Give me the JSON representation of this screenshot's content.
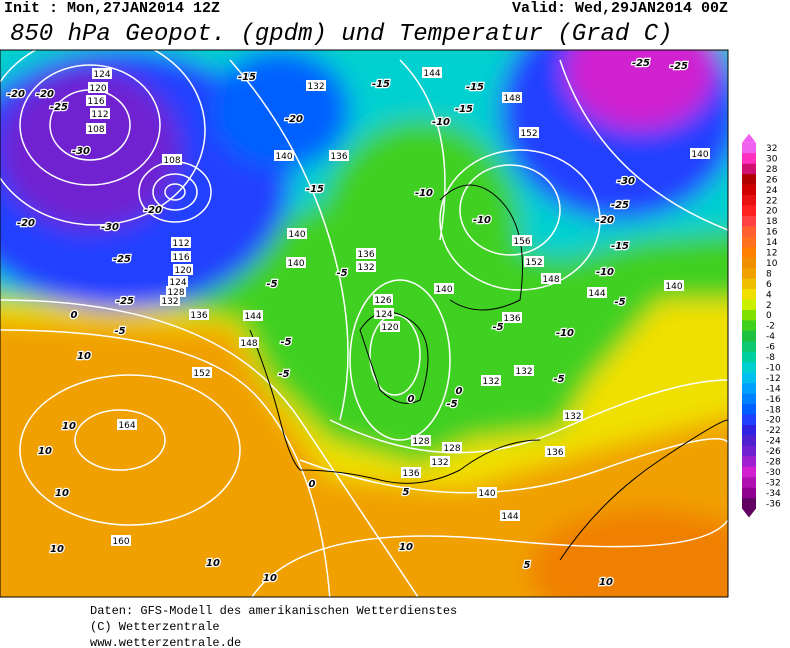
{
  "header": {
    "init": "Init : Mon,27JAN2014 12Z",
    "valid": "Valid: Wed,29JAN2014 00Z",
    "title": "850 hPa Geopot. (gpdm) und Temperatur (Grad C)"
  },
  "map": {
    "geopotential_labels": [
      "124",
      "120",
      "116",
      "112",
      "108",
      "108",
      "112",
      "116",
      "120",
      "124",
      "128",
      "132",
      "136",
      "144",
      "148",
      "152",
      "164",
      "160",
      "140",
      "140",
      "136",
      "132",
      "126",
      "124",
      "120",
      "140",
      "136",
      "132",
      "132",
      "132",
      "136",
      "128",
      "128",
      "132",
      "136",
      "140",
      "144",
      "144",
      "148",
      "152",
      "156",
      "152",
      "148",
      "144",
      "140",
      "140",
      "132",
      "140",
      "136"
    ],
    "temperature_labels": [
      "-20",
      "-20",
      "-25",
      "-30",
      "-20",
      "-30",
      "-25",
      "-20",
      "-25",
      "0",
      "-5",
      "10",
      "10",
      "10",
      "10",
      "10",
      "10",
      "10",
      "10",
      "10",
      "5",
      "5",
      "0",
      "-5",
      "-5",
      "-5",
      "-5",
      "-5",
      "0",
      "0",
      "-5",
      "-5",
      "-10",
      "-5",
      "-10",
      "-15",
      "-20",
      "-25",
      "-30",
      "-25",
      "-25",
      "-15",
      "-15",
      "-10",
      "-15",
      "-10",
      "-10",
      "-15",
      "-20",
      "-15"
    ]
  },
  "colorbar": {
    "levels": [
      32,
      30,
      28,
      26,
      24,
      22,
      20,
      18,
      16,
      14,
      12,
      10,
      8,
      6,
      4,
      2,
      0,
      -2,
      -4,
      -6,
      -8,
      -10,
      -12,
      -14,
      -16,
      -18,
      -20,
      -22,
      -24,
      -26,
      -28,
      -30,
      -32,
      -34,
      -36
    ],
    "colors": [
      "#f060f0",
      "#ff30c0",
      "#d01070",
      "#b00000",
      "#d00000",
      "#e81010",
      "#ff2020",
      "#ff4040",
      "#ff6030",
      "#ff7020",
      "#ff8000",
      "#f09000",
      "#f0a000",
      "#f0c000",
      "#f0e000",
      "#c8f000",
      "#80e000",
      "#40d020",
      "#20c040",
      "#10c870",
      "#00d0a0",
      "#00d0d0",
      "#00c0f0",
      "#00a0ff",
      "#0080ff",
      "#0060ff",
      "#2040ff",
      "#3020e0",
      "#5020d0",
      "#7020d0",
      "#a020d0",
      "#d020d0",
      "#b010b0",
      "#900090",
      "#600060"
    ]
  },
  "footer": {
    "line1": "Daten: GFS-Modell des amerikanischen Wetterdienstes",
    "line2": "(C) Wetterzentrale",
    "line3": "www.wetterzentrale.de"
  }
}
